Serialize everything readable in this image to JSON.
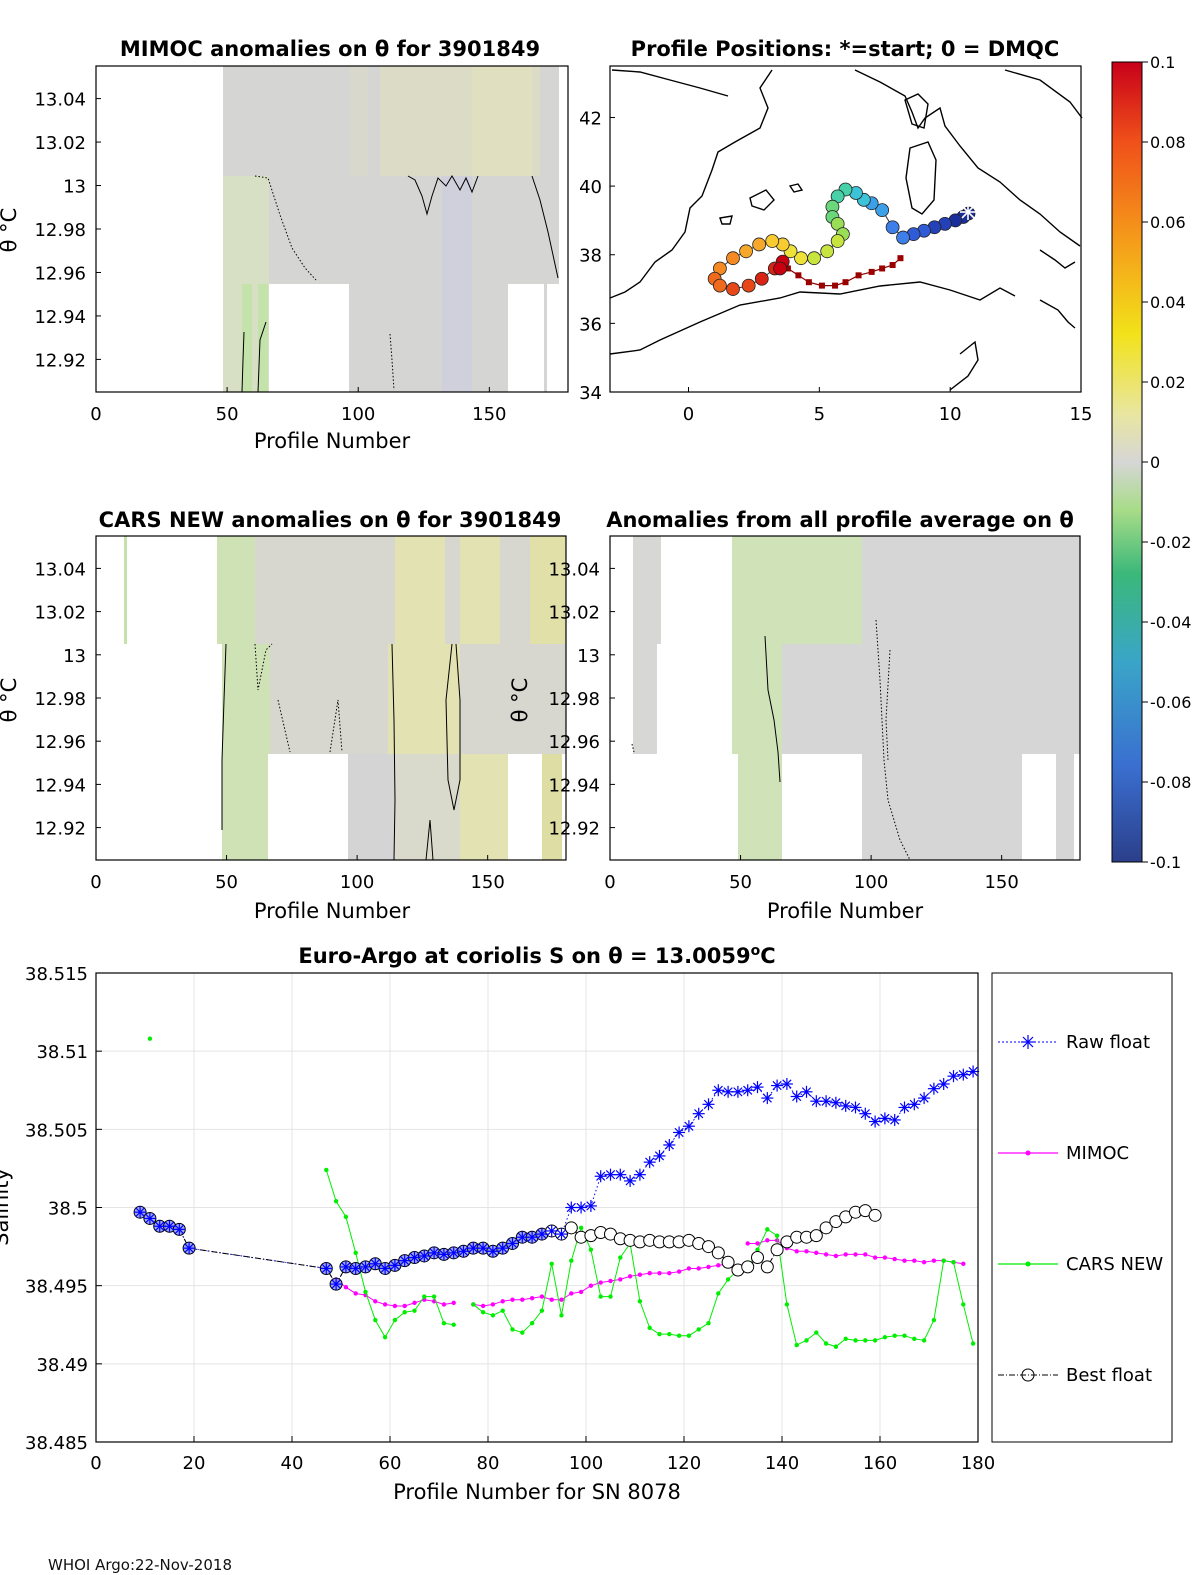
{
  "footer": "WHOI Argo:22-Nov-2018",
  "colorbar": {
    "ticks": [
      "0.1",
      "0.08",
      "0.06",
      "0.04",
      "0.02",
      "0",
      "-0.02",
      "-0.04",
      "-0.06",
      "-0.08",
      "-0.1"
    ],
    "range": [
      -0.1,
      0.1
    ]
  },
  "chart_data": [
    {
      "type": "heatmap",
      "title": "MIMOC anomalies on θ  for 3901849",
      "xlabel": "Profile Number",
      "ylabel": "θ °C",
      "xticks": [
        "0",
        "50",
        "100",
        "150"
      ],
      "yticks": [
        "13.04",
        "13.02",
        "13",
        "12.98",
        "12.96",
        "12.94",
        "12.92"
      ],
      "xlim": [
        0,
        180
      ],
      "ylim": [
        12.905,
        13.055
      ],
      "blank_regions": [
        [
          0,
          49
        ],
        [
          67,
          97
        ],
        [
          158,
          172
        ]
      ]
    },
    {
      "type": "scatter",
      "title": "Profile Positions: *=start; 0 = DMQC",
      "xticks": [
        "0",
        "5",
        "10",
        "15"
      ],
      "yticks": [
        "42",
        "40",
        "38",
        "36",
        "34"
      ],
      "xlim": [
        -3,
        15
      ],
      "ylim": [
        34,
        43.5
      ],
      "track": [
        [
          10.7,
          39.2
        ],
        [
          10.5,
          39.1
        ],
        [
          10.2,
          39.0
        ],
        [
          9.8,
          38.9
        ],
        [
          9.4,
          38.8
        ],
        [
          9.0,
          38.7
        ],
        [
          8.6,
          38.6
        ],
        [
          8.2,
          38.5
        ],
        [
          7.8,
          38.8
        ],
        [
          7.4,
          39.3
        ],
        [
          7.0,
          39.5
        ],
        [
          6.7,
          39.6
        ],
        [
          6.4,
          39.8
        ],
        [
          6.0,
          39.9
        ],
        [
          5.7,
          39.7
        ],
        [
          5.5,
          39.4
        ],
        [
          5.5,
          39.1
        ],
        [
          5.7,
          38.9
        ],
        [
          5.9,
          38.6
        ],
        [
          5.7,
          38.4
        ],
        [
          5.3,
          38.1
        ],
        [
          4.8,
          37.9
        ],
        [
          4.3,
          37.9
        ],
        [
          3.9,
          38.1
        ],
        [
          3.6,
          38.3
        ],
        [
          3.2,
          38.4
        ],
        [
          2.7,
          38.3
        ],
        [
          2.2,
          38.1
        ],
        [
          1.7,
          37.9
        ],
        [
          1.2,
          37.6
        ],
        [
          1.0,
          37.3
        ],
        [
          1.2,
          37.1
        ],
        [
          1.7,
          37.0
        ],
        [
          2.3,
          37.1
        ],
        [
          2.8,
          37.3
        ],
        [
          3.3,
          37.6
        ],
        [
          3.6,
          37.8
        ],
        [
          3.5,
          37.6
        ]
      ],
      "dmqc_track": [
        [
          3.8,
          37.6
        ],
        [
          4.2,
          37.4
        ],
        [
          4.6,
          37.2
        ],
        [
          5.1,
          37.1
        ],
        [
          5.6,
          37.1
        ],
        [
          6.0,
          37.2
        ],
        [
          6.5,
          37.4
        ],
        [
          7.0,
          37.5
        ],
        [
          7.4,
          37.6
        ],
        [
          7.8,
          37.7
        ],
        [
          8.1,
          37.9
        ]
      ],
      "colorbar_ticks": [
        "0.1",
        "0.08",
        "0.06",
        "0.04",
        "0.02",
        "0",
        "-0.02",
        "-0.04",
        "-0.06",
        "-0.08",
        "-0.1"
      ]
    },
    {
      "type": "heatmap",
      "title": "CARS NEW anomalies on θ for 3901849",
      "xlabel": "Profile Number",
      "ylabel": "θ °C",
      "xticks": [
        "0",
        "50",
        "100",
        "150"
      ],
      "yticks": [
        "13.04",
        "13.02",
        "13",
        "12.98",
        "12.96",
        "12.94",
        "12.92"
      ],
      "xlim": [
        0,
        180
      ],
      "ylim": [
        12.905,
        13.055
      ]
    },
    {
      "type": "heatmap",
      "title": "Anomalies from all profile average on θ",
      "xlabel": "Profile Number",
      "ylabel": "θ °C",
      "xticks": [
        "0",
        "50",
        "100",
        "150"
      ],
      "yticks": [
        "13.04",
        "13.02",
        "13",
        "12.98",
        "12.96",
        "12.94",
        "12.92"
      ],
      "xlim": [
        0,
        180
      ],
      "ylim": [
        12.905,
        13.055
      ]
    },
    {
      "type": "line",
      "title": "Euro-Argo at coriolis S on θ = 13.0059",
      "title_sup": "o",
      "title_unit": "C",
      "xlabel": "Profile Number for SN 8078",
      "ylabel": "Salinity",
      "xticks": [
        "0",
        "20",
        "40",
        "60",
        "80",
        "100",
        "120",
        "140",
        "160",
        "180"
      ],
      "yticks": [
        "38.515",
        "38.51",
        "38.505",
        "38.5",
        "38.495",
        "38.49",
        "38.485"
      ],
      "xlim": [
        0,
        180
      ],
      "ylim": [
        38.485,
        38.515
      ],
      "grid": true,
      "legend_position": "right",
      "series": [
        {
          "name": "Raw float",
          "color": "#0000ff",
          "x": [
            9,
            11,
            13,
            15,
            17,
            19,
            47,
            49,
            51,
            53,
            55,
            57,
            59,
            61,
            63,
            65,
            67,
            69,
            71,
            73,
            75,
            77,
            79,
            81,
            83,
            85,
            87,
            89,
            91,
            93,
            95,
            97,
            99,
            101,
            103,
            105,
            107,
            109,
            111,
            113,
            115,
            117,
            119,
            121,
            123,
            125,
            127,
            129,
            131,
            133,
            135,
            137,
            139,
            141,
            143,
            145,
            147,
            149,
            151,
            153,
            155,
            157,
            159,
            161,
            163,
            165,
            167,
            169,
            171,
            173,
            175,
            177,
            179
          ],
          "y": [
            38.4997,
            38.4993,
            38.4988,
            38.4988,
            38.4986,
            38.4974,
            38.4961,
            38.4951,
            38.4962,
            38.4961,
            38.4962,
            38.4964,
            38.4961,
            38.4963,
            38.4966,
            38.4968,
            38.4969,
            38.4971,
            38.497,
            38.4971,
            38.4972,
            38.4974,
            38.4974,
            38.4972,
            38.4974,
            38.4977,
            38.4981,
            38.4981,
            38.4983,
            38.4985,
            38.4983,
            38.5,
            38.5,
            38.5001,
            38.502,
            38.5021,
            38.5021,
            38.5017,
            38.5021,
            38.5029,
            38.5033,
            38.504,
            38.5048,
            38.5052,
            38.506,
            38.5066,
            38.5075,
            38.5074,
            38.5074,
            38.5075,
            38.5077,
            38.507,
            38.5078,
            38.5079,
            38.5071,
            38.5074,
            38.5068,
            38.5068,
            38.5067,
            38.5065,
            38.5064,
            38.506,
            38.5055,
            38.5057,
            38.5056,
            38.5064,
            38.5066,
            38.507,
            38.5076,
            38.5079,
            38.5084,
            38.5085,
            38.5087
          ]
        },
        {
          "name": "MIMOC",
          "color": "#ff00ff",
          "x": [
            49,
            51,
            53,
            55,
            57,
            59,
            61,
            63,
            65,
            67,
            69,
            71,
            73,
            77,
            79,
            81,
            83,
            85,
            87,
            89,
            91,
            93,
            95,
            97,
            99,
            101,
            103,
            105,
            107,
            109,
            111,
            113,
            115,
            117,
            119,
            121,
            123,
            125,
            127,
            129,
            133,
            135,
            137,
            139,
            141,
            143,
            145,
            147,
            149,
            151,
            153,
            155,
            157,
            159,
            161,
            163,
            165,
            167,
            169,
            171,
            173,
            175,
            177
          ],
          "y": [
            38.4954,
            38.4949,
            38.4945,
            38.4944,
            38.494,
            38.4938,
            38.4937,
            38.4937,
            38.4939,
            38.4941,
            38.494,
            38.4938,
            38.4939,
            38.4938,
            38.4937,
            38.4938,
            38.494,
            38.4941,
            38.4941,
            38.4942,
            38.4943,
            38.4941,
            38.4941,
            38.4945,
            38.4946,
            38.495,
            38.4952,
            38.4953,
            38.4954,
            38.4956,
            38.4957,
            38.4958,
            38.4958,
            38.4958,
            38.4959,
            38.4961,
            38.4961,
            38.4962,
            38.4963,
            38.4964,
            38.4977,
            38.4977,
            38.4979,
            38.4979,
            38.4974,
            38.4972,
            38.4972,
            38.4971,
            38.497,
            38.4969,
            38.497,
            38.497,
            38.497,
            38.4968,
            38.4968,
            38.4967,
            38.4966,
            38.4966,
            38.4965,
            38.4966,
            38.4966,
            38.4965,
            38.4964
          ]
        },
        {
          "name": "CARS NEW",
          "color": "#00ee00",
          "x": [
            11,
            47,
            49,
            51,
            53,
            55,
            57,
            59,
            61,
            63,
            65,
            67,
            69,
            71,
            73,
            77,
            79,
            81,
            83,
            85,
            87,
            89,
            91,
            93,
            95,
            97,
            99,
            101,
            103,
            105,
            107,
            109,
            111,
            113,
            115,
            117,
            119,
            121,
            123,
            125,
            127,
            129,
            131,
            133,
            135,
            137,
            139,
            141,
            143,
            145,
            147,
            149,
            151,
            153,
            155,
            157,
            159,
            161,
            163,
            165,
            167,
            169,
            171,
            173,
            175,
            177,
            179
          ],
          "y": [
            38.5108,
            38.5024,
            38.5004,
            38.4994,
            38.4971,
            38.4946,
            38.4928,
            38.4917,
            38.4928,
            38.4933,
            38.4934,
            38.4943,
            38.4943,
            38.4926,
            38.4925,
            38.4938,
            38.4933,
            38.4931,
            38.4934,
            38.4922,
            38.492,
            38.4926,
            38.4934,
            38.4964,
            38.4931,
            38.4966,
            38.4987,
            38.4973,
            38.4943,
            38.4943,
            38.4968,
            38.4977,
            38.494,
            38.4923,
            38.4919,
            38.4919,
            38.4918,
            38.4918,
            38.4922,
            38.4926,
            38.4945,
            38.4954,
            38.496,
            38.4961,
            38.4973,
            38.4986,
            38.4982,
            38.4938,
            38.4912,
            38.4915,
            38.492,
            38.4913,
            38.4911,
            38.4916,
            38.4915,
            38.4915,
            38.4915,
            38.4917,
            38.4918,
            38.4918,
            38.4916,
            38.4915,
            38.4928,
            38.4966,
            38.4965,
            38.4938,
            38.4913
          ]
        },
        {
          "name": "Best float",
          "color": "#000000",
          "x": [
            9,
            11,
            13,
            15,
            17,
            19,
            47,
            49,
            51,
            53,
            55,
            57,
            59,
            61,
            63,
            65,
            67,
            69,
            71,
            73,
            75,
            77,
            79,
            81,
            83,
            85,
            87,
            89,
            91,
            93,
            95,
            97,
            99,
            101,
            103,
            105,
            107,
            109,
            111,
            113,
            115,
            117,
            119,
            121,
            123,
            125,
            127,
            129,
            131,
            133,
            135,
            137,
            139,
            141,
            143,
            145,
            147,
            149,
            151,
            153,
            155,
            157,
            159
          ],
          "y": [
            38.4997,
            38.4993,
            38.4988,
            38.4988,
            38.4986,
            38.4974,
            38.4961,
            38.4951,
            38.4962,
            38.4961,
            38.4962,
            38.4964,
            38.4961,
            38.4963,
            38.4966,
            38.4968,
            38.4969,
            38.4971,
            38.497,
            38.4971,
            38.4972,
            38.4974,
            38.4974,
            38.4972,
            38.4974,
            38.4977,
            38.4981,
            38.4981,
            38.4983,
            38.4985,
            38.4983,
            38.4987,
            38.4981,
            38.4982,
            38.4984,
            38.4983,
            38.498,
            38.4979,
            38.4978,
            38.4979,
            38.4978,
            38.4978,
            38.4978,
            38.4979,
            38.4977,
            38.4975,
            38.4971,
            38.4965,
            38.496,
            38.4962,
            38.4968,
            38.4962,
            38.4973,
            38.4978,
            38.4981,
            38.4981,
            38.4982,
            38.4987,
            38.4991,
            38.4994,
            38.4997,
            38.4998,
            38.4995
          ]
        }
      ]
    }
  ]
}
